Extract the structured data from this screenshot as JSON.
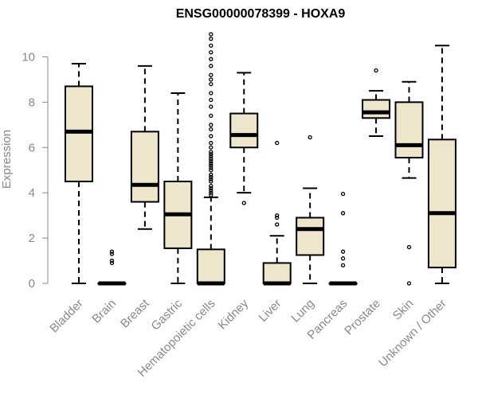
{
  "chart_data": {
    "type": "boxplot",
    "title": "ENSG00000078399 - HOXA9",
    "xlabel": "",
    "ylabel": "Expression",
    "ylim": [
      0,
      11
    ],
    "yticks": [
      0,
      2,
      4,
      6,
      8,
      10
    ],
    "box_fill": "#ede6cc",
    "categories": [
      "Bladder",
      "Brain",
      "Breast",
      "Gastric",
      "Hematopoietic cells",
      "Kidney",
      "Liver",
      "Lung",
      "Pancreas",
      "Prostate",
      "Skin",
      "Unknown / Other"
    ],
    "boxes": [
      {
        "name": "Bladder",
        "whisker_low": 0.0,
        "q1": 4.5,
        "median": 6.7,
        "q3": 8.7,
        "whisker_high": 9.7,
        "outliers": []
      },
      {
        "name": "Brain",
        "whisker_low": 0.0,
        "q1": 0.0,
        "median": 0.0,
        "q3": 0.0,
        "whisker_high": 0.0,
        "outliers": [
          0.9,
          1.0,
          1.3,
          1.4
        ]
      },
      {
        "name": "Breast",
        "whisker_low": 2.4,
        "q1": 3.6,
        "median": 4.35,
        "q3": 6.7,
        "whisker_high": 9.6,
        "outliers": []
      },
      {
        "name": "Gastric",
        "whisker_low": 0.0,
        "q1": 1.55,
        "median": 3.05,
        "q3": 4.5,
        "whisker_high": 8.4,
        "outliers": []
      },
      {
        "name": "Hematopoietic cells",
        "whisker_low": 0.0,
        "q1": 0.0,
        "median": 0.0,
        "q3": 1.5,
        "whisker_high": 3.8,
        "outliers": [
          3.9,
          4.0,
          4.1,
          4.2,
          4.3,
          4.5,
          4.6,
          4.7,
          4.8,
          5.0,
          5.1,
          5.2,
          5.3,
          5.4,
          5.5,
          5.6,
          5.7,
          5.8,
          6.0,
          6.2,
          6.5,
          6.8,
          7.0,
          7.4,
          7.8,
          8.1,
          8.4,
          8.8,
          9.0,
          9.2,
          9.6,
          9.9,
          10.2,
          10.5,
          10.8,
          11.0
        ]
      },
      {
        "name": "Kidney",
        "whisker_low": 4.0,
        "q1": 6.0,
        "median": 6.55,
        "q3": 7.5,
        "whisker_high": 9.3,
        "outliers": [
          3.55
        ]
      },
      {
        "name": "Liver",
        "whisker_low": 0.0,
        "q1": 0.0,
        "median": 0.0,
        "q3": 0.9,
        "whisker_high": 2.1,
        "outliers": [
          2.6,
          2.9,
          3.0,
          6.2
        ]
      },
      {
        "name": "Lung",
        "whisker_low": 0.0,
        "q1": 1.25,
        "median": 2.4,
        "q3": 2.9,
        "whisker_high": 4.2,
        "outliers": [
          6.45
        ]
      },
      {
        "name": "Pancreas",
        "whisker_low": 0.0,
        "q1": 0.0,
        "median": 0.0,
        "q3": 0.0,
        "whisker_high": 0.0,
        "outliers": [
          0.8,
          1.1,
          1.4,
          3.1,
          3.95
        ]
      },
      {
        "name": "Prostate",
        "whisker_low": 6.5,
        "q1": 7.3,
        "median": 7.55,
        "q3": 8.1,
        "whisker_high": 8.5,
        "outliers": [
          9.4
        ]
      },
      {
        "name": "Skin",
        "whisker_low": 4.65,
        "q1": 5.55,
        "median": 6.1,
        "q3": 8.0,
        "whisker_high": 8.9,
        "outliers": [
          0.0,
          1.6
        ]
      },
      {
        "name": "Unknown / Other",
        "whisker_low": 0.0,
        "q1": 0.7,
        "median": 3.1,
        "q3": 6.35,
        "whisker_high": 10.5,
        "outliers": []
      }
    ]
  }
}
